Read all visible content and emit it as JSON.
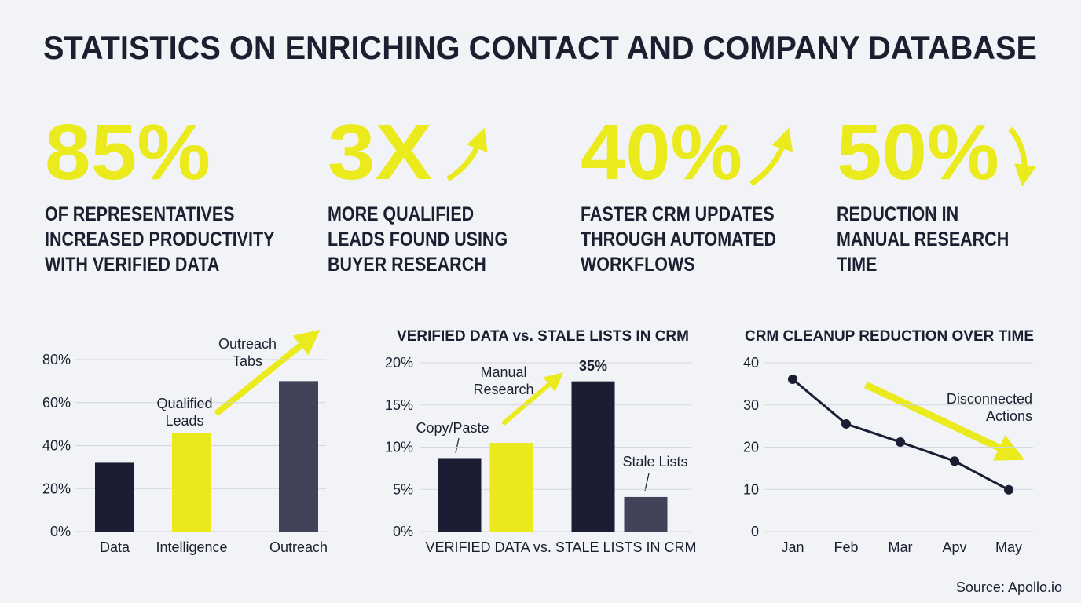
{
  "title": "STATISTICS ON ENRICHING CONTACT AND COMPANY DATABASE",
  "stats": [
    {
      "value": "85%",
      "label": [
        "OF REPRESENTATIVES",
        "INCREASED PRODUCTIVITY",
        "WITH VERIFIED DATA"
      ]
    },
    {
      "value": "3X",
      "label": [
        "MORE QUALIFIED",
        "LEADS FOUND USING",
        "BUYER RESEARCH"
      ]
    },
    {
      "value": "40%",
      "label": [
        "FASTER CRM UPDATES",
        "THROUGH AUTOMATED",
        "WORKFLOWS"
      ]
    },
    {
      "value": "50%",
      "label": [
        "REDUCTION IN",
        "MANUAL RESEARCH",
        "TIME"
      ]
    }
  ],
  "chart_data": [
    {
      "type": "bar",
      "categories": [
        "Data",
        "Intelligence",
        "Outreach"
      ],
      "values": [
        32,
        46,
        70
      ],
      "colors": [
        "#1b1d33",
        "#e9e91c",
        "#424359"
      ],
      "ylim": [
        0,
        80
      ],
      "yticks": [
        {
          "value": 0,
          "label": "0%"
        },
        {
          "value": 20,
          "label": "20%"
        },
        {
          "value": 40,
          "label": "40%"
        },
        {
          "value": 60,
          "label": "60%"
        },
        {
          "value": 80,
          "label": "80%"
        }
      ],
      "grid": true,
      "annotations": [
        [
          "Qualified",
          "Leads"
        ],
        [
          "Outreach",
          "Tabs"
        ]
      ]
    },
    {
      "type": "bar",
      "title": "VERIFIED DATA vs. STALE LISTS IN CRM",
      "x_label": "VERIFIED DATA vs. STALE LISTS IN CRM",
      "categories": [
        null,
        null,
        null,
        null
      ],
      "values": [
        8.7,
        10.5,
        17.8,
        4.1
      ],
      "colors": [
        "#1b1d33",
        "#e9e91c",
        "#1b1d33",
        "#424359"
      ],
      "ylim": [
        0,
        20
      ],
      "yticks": [
        {
          "value": 0,
          "label": "0%"
        },
        {
          "value": 5,
          "label": "5%"
        },
        {
          "value": 10,
          "label": "10%"
        },
        {
          "value": 15,
          "label": "15%"
        },
        {
          "value": 20,
          "label": "20%"
        }
      ],
      "grid": true,
      "annotations": [
        [
          "Copy/Paste"
        ],
        [
          "Manual",
          "Research"
        ],
        [
          "35%"
        ],
        [
          "Stale Lists"
        ]
      ]
    },
    {
      "type": "line",
      "title": "CRM CLEANUP REDUCTION OVER TIME",
      "categories": [
        "Jan",
        "Feb",
        "Mar",
        "Apv",
        "May"
      ],
      "values": [
        36.1,
        25.5,
        21.2,
        16.7,
        9.9
      ],
      "color": "#1b1d33",
      "ylim": [
        0,
        40
      ],
      "yticks": [
        0,
        10,
        20,
        30,
        40
      ],
      "grid": true,
      "annotations": [
        [
          "Disconnected",
          "Actions"
        ]
      ]
    }
  ],
  "source": "Source: Apollo.io"
}
